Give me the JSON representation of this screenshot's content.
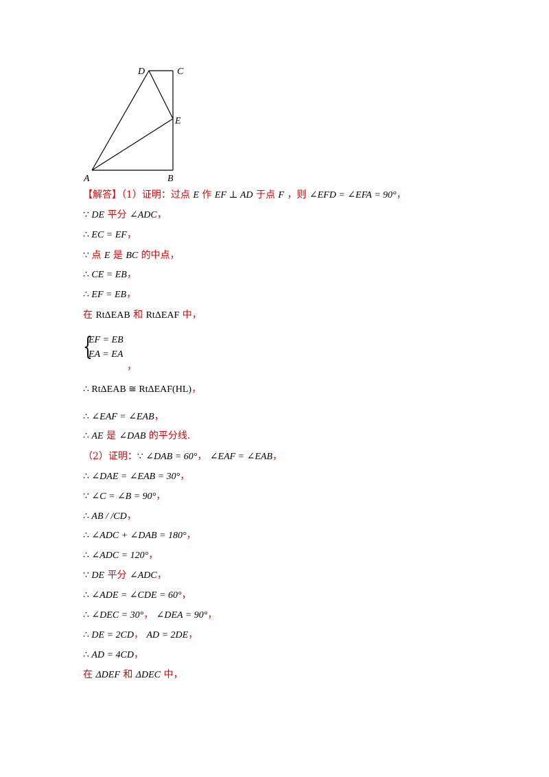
{
  "figure": {
    "labels": {
      "D": "D",
      "C": "C",
      "E": "E",
      "A": "A",
      "B": "B"
    }
  },
  "lines": [
    {
      "id": "l1",
      "parts": [
        {
          "t": "【解答】",
          "c": "red"
        },
        {
          "t": "（1）证明：过点 ",
          "c": "red"
        },
        {
          "t": "E",
          "c": "m"
        },
        {
          "t": " 作 ",
          "c": "red"
        },
        {
          "t": "EF ⊥ AD",
          "c": "m"
        },
        {
          "t": " 于点 ",
          "c": "red"
        },
        {
          "t": "F",
          "c": "m"
        },
        {
          "t": " ，则 ",
          "c": "red"
        },
        {
          "t": "∠EFD = ∠EFA = 90°",
          "c": "m"
        },
        {
          "t": "，",
          "c": "red"
        }
      ]
    },
    {
      "id": "l2",
      "parts": [
        {
          "t": "∵ ",
          "c": "u"
        },
        {
          "t": "DE",
          "c": "m"
        },
        {
          "t": " 平分 ",
          "c": "red"
        },
        {
          "t": "∠ADC",
          "c": "m"
        },
        {
          "t": "，",
          "c": "red"
        }
      ]
    },
    {
      "id": "l3",
      "parts": [
        {
          "t": "∴ ",
          "c": "u"
        },
        {
          "t": "EC = EF",
          "c": "m"
        },
        {
          "t": "，",
          "c": "red"
        }
      ]
    },
    {
      "id": "l4",
      "parts": [
        {
          "t": "∵ ",
          "c": "u"
        },
        {
          "t": "点 ",
          "c": "red"
        },
        {
          "t": "E",
          "c": "m"
        },
        {
          "t": " 是 ",
          "c": "red"
        },
        {
          "t": "BC",
          "c": "m"
        },
        {
          "t": " 的中点，",
          "c": "red"
        }
      ]
    },
    {
      "id": "l5",
      "parts": [
        {
          "t": "∴ ",
          "c": "u"
        },
        {
          "t": "CE = EB",
          "c": "m"
        },
        {
          "t": "，",
          "c": "red"
        }
      ]
    },
    {
      "id": "l6",
      "parts": [
        {
          "t": "∴ ",
          "c": "u"
        },
        {
          "t": "EF = EB",
          "c": "m"
        },
        {
          "t": "，",
          "c": "red"
        }
      ]
    },
    {
      "id": "l7",
      "parts": [
        {
          "t": "在 ",
          "c": "red"
        },
        {
          "t": "RtΔEAB",
          "c": "u"
        },
        {
          "t": " 和 ",
          "c": "red"
        },
        {
          "t": "RtΔEAF",
          "c": "u"
        },
        {
          "t": " 中，",
          "c": "red"
        }
      ]
    },
    {
      "id": "l8",
      "parts": [
        {
          "t": "，",
          "c": "red"
        }
      ]
    },
    {
      "id": "l9",
      "parts": [
        {
          "t": "∴ ",
          "c": "u"
        },
        {
          "t": "RtΔEAB ≅ RtΔEAF(HL)",
          "c": "u"
        },
        {
          "t": "，",
          "c": "red"
        }
      ]
    },
    {
      "id": "l10",
      "parts": [
        {
          "t": "∴ ",
          "c": "u"
        },
        {
          "t": "∠EAF = ∠EAB",
          "c": "m"
        },
        {
          "t": "，",
          "c": "red"
        }
      ]
    },
    {
      "id": "l11",
      "parts": [
        {
          "t": "∴ ",
          "c": "u"
        },
        {
          "t": "AE",
          "c": "m"
        },
        {
          "t": " 是 ",
          "c": "red"
        },
        {
          "t": "∠DAB",
          "c": "m"
        },
        {
          "t": " 的平分线.",
          "c": "red"
        }
      ]
    },
    {
      "id": "l12",
      "parts": [
        {
          "t": "（2）证明：",
          "c": "red"
        },
        {
          "t": "∵ ",
          "c": "u"
        },
        {
          "t": "∠DAB = 60°",
          "c": "m"
        },
        {
          "t": "，  ",
          "c": "red"
        },
        {
          "t": "∠EAF = ∠EAB",
          "c": "m"
        },
        {
          "t": "，",
          "c": "red"
        }
      ]
    },
    {
      "id": "l13",
      "parts": [
        {
          "t": "∴ ",
          "c": "u"
        },
        {
          "t": "∠DAE = ∠EAB = 30°",
          "c": "m"
        },
        {
          "t": "，",
          "c": "red"
        }
      ]
    },
    {
      "id": "l14",
      "parts": [
        {
          "t": "∵ ",
          "c": "u"
        },
        {
          "t": "∠C = ∠B = 90°",
          "c": "m"
        },
        {
          "t": "，",
          "c": "red"
        }
      ]
    },
    {
      "id": "l15",
      "parts": [
        {
          "t": "∴ ",
          "c": "u"
        },
        {
          "t": "AB / /CD",
          "c": "m"
        },
        {
          "t": "，",
          "c": "red"
        }
      ]
    },
    {
      "id": "l16",
      "parts": [
        {
          "t": "∴ ",
          "c": "u"
        },
        {
          "t": "∠ADC + ∠DAB = 180°",
          "c": "m"
        },
        {
          "t": "，",
          "c": "red"
        }
      ]
    },
    {
      "id": "l17",
      "parts": [
        {
          "t": "∴ ",
          "c": "u"
        },
        {
          "t": "∠ADC = 120°",
          "c": "m"
        },
        {
          "t": "，",
          "c": "red"
        }
      ]
    },
    {
      "id": "l18",
      "parts": [
        {
          "t": "∵ ",
          "c": "u"
        },
        {
          "t": "DE",
          "c": "m"
        },
        {
          "t": " 平分 ",
          "c": "red"
        },
        {
          "t": "∠ADC",
          "c": "m"
        },
        {
          "t": "，",
          "c": "red"
        }
      ]
    },
    {
      "id": "l19",
      "parts": [
        {
          "t": "∴ ",
          "c": "u"
        },
        {
          "t": "∠ADE = ∠CDE = 60°",
          "c": "m"
        },
        {
          "t": "，",
          "c": "red"
        }
      ]
    },
    {
      "id": "l20",
      "parts": [
        {
          "t": "∴ ",
          "c": "u"
        },
        {
          "t": "∠DEC = 30°",
          "c": "m"
        },
        {
          "t": "，  ",
          "c": "red"
        },
        {
          "t": "∠DEA = 90°",
          "c": "m"
        },
        {
          "t": "，",
          "c": "red"
        }
      ]
    },
    {
      "id": "l21",
      "parts": [
        {
          "t": "∴ ",
          "c": "u"
        },
        {
          "t": "DE = 2CD",
          "c": "m"
        },
        {
          "t": "，  ",
          "c": "red"
        },
        {
          "t": "AD = 2DE",
          "c": "m"
        },
        {
          "t": "，",
          "c": "red"
        }
      ]
    },
    {
      "id": "l22",
      "parts": [
        {
          "t": "∴ ",
          "c": "u"
        },
        {
          "t": "AD = 4CD",
          "c": "m"
        },
        {
          "t": "，",
          "c": "red"
        }
      ]
    },
    {
      "id": "l23",
      "parts": [
        {
          "t": "在 ",
          "c": "red"
        },
        {
          "t": "ΔDEF",
          "c": "m"
        },
        {
          "t": " 和 ",
          "c": "red"
        },
        {
          "t": "ΔDEC",
          "c": "m"
        },
        {
          "t": " 中，",
          "c": "red"
        }
      ]
    }
  ],
  "system": {
    "eq1": "EF = EB",
    "eq2": "EA = EA"
  }
}
